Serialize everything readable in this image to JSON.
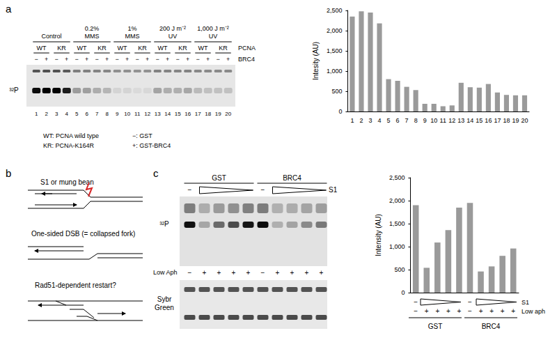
{
  "panel_labels": [
    "a",
    "b",
    "c"
  ],
  "gel_a": {
    "conditions": [
      [
        "Control"
      ],
      [
        "0.2%",
        "MMS"
      ],
      [
        "1%",
        "MMS"
      ],
      [
        "200 J m⁻²",
        "UV"
      ],
      [
        "1,000 J m⁻²",
        "UV"
      ]
    ],
    "pcna_row": [
      "WT",
      "KR"
    ],
    "pcna_label": "PCNA",
    "brc4_row": [
      "−",
      "+"
    ],
    "brc4_label": "BRC4",
    "signal_label": "³²P",
    "lane_numbers": [
      1,
      2,
      3,
      4,
      5,
      6,
      7,
      8,
      9,
      10,
      11,
      12,
      13,
      14,
      15,
      16,
      17,
      18,
      19,
      20
    ],
    "key": [
      [
        "WT: PCNA wild type",
        "−: GST"
      ],
      [
        "KR: PCNA-K164R",
        "+: GST-BRC4"
      ]
    ]
  },
  "schematic_b": {
    "steps": [
      "S1 or mung bean",
      "One-sided DSB (= collapsed fork)",
      "Rad51-dependent restart?"
    ]
  },
  "gel_c": {
    "groups": [
      "GST",
      "BRC4"
    ],
    "s1_untreated": "−",
    "s1_label": "S1",
    "signal_label": "³²P",
    "low_aph_label": "Low Aph",
    "low_aph_row": [
      "−",
      "+",
      "+",
      "+",
      "+",
      "−",
      "+",
      "+",
      "+",
      "+"
    ],
    "stain_label": [
      "Sybr",
      "Green"
    ]
  },
  "chart_data": [
    {
      "type": "bar",
      "categories": [
        "1",
        "2",
        "3",
        "4",
        "5",
        "6",
        "7",
        "8",
        "9",
        "10",
        "11",
        "12",
        "13",
        "14",
        "15",
        "16",
        "17",
        "18",
        "19",
        "20"
      ],
      "values": [
        2350,
        2480,
        2450,
        2180,
        800,
        760,
        610,
        530,
        190,
        190,
        130,
        150,
        710,
        600,
        590,
        680,
        470,
        410,
        400,
        400
      ],
      "color": "#9a9a9a",
      "ylabel": "Intesity (AU)",
      "ylim": [
        0,
        2500
      ],
      "yticks": [
        0,
        500,
        {
          "value": 1000,
          "label": "1,000"
        },
        {
          "value": 1500,
          "label": "1,500"
        },
        {
          "value": 2000,
          "label": "2,000"
        },
        {
          "value": 2500,
          "label": "2,500"
        }
      ],
      "grid": false
    },
    {
      "type": "bar",
      "categories": [
        "−",
        "+",
        "+",
        "+",
        "+",
        "−",
        "+",
        "+",
        "+",
        "+"
      ],
      "values": [
        1900,
        540,
        1090,
        1360,
        1850,
        1950,
        460,
        570,
        800,
        960
      ],
      "color": "#9a9a9a",
      "ylabel": "Intensity (AU)",
      "ylim": [
        0,
        2500
      ],
      "yticks": [
        0,
        500,
        {
          "value": 1000,
          "label": "1,000"
        },
        {
          "value": 1500,
          "label": "1,500"
        },
        {
          "value": 2000,
          "label": "2,000"
        },
        {
          "value": 2500,
          "label": "2,500"
        }
      ],
      "grid": false,
      "annotations": {
        "row_labels": [
          "S1",
          "Low aph"
        ],
        "s1_row": [
          "−",
          null,
          null,
          null,
          null,
          "−",
          null,
          null,
          null,
          null
        ],
        "groups": [
          "GST",
          "BRC4"
        ]
      }
    }
  ]
}
